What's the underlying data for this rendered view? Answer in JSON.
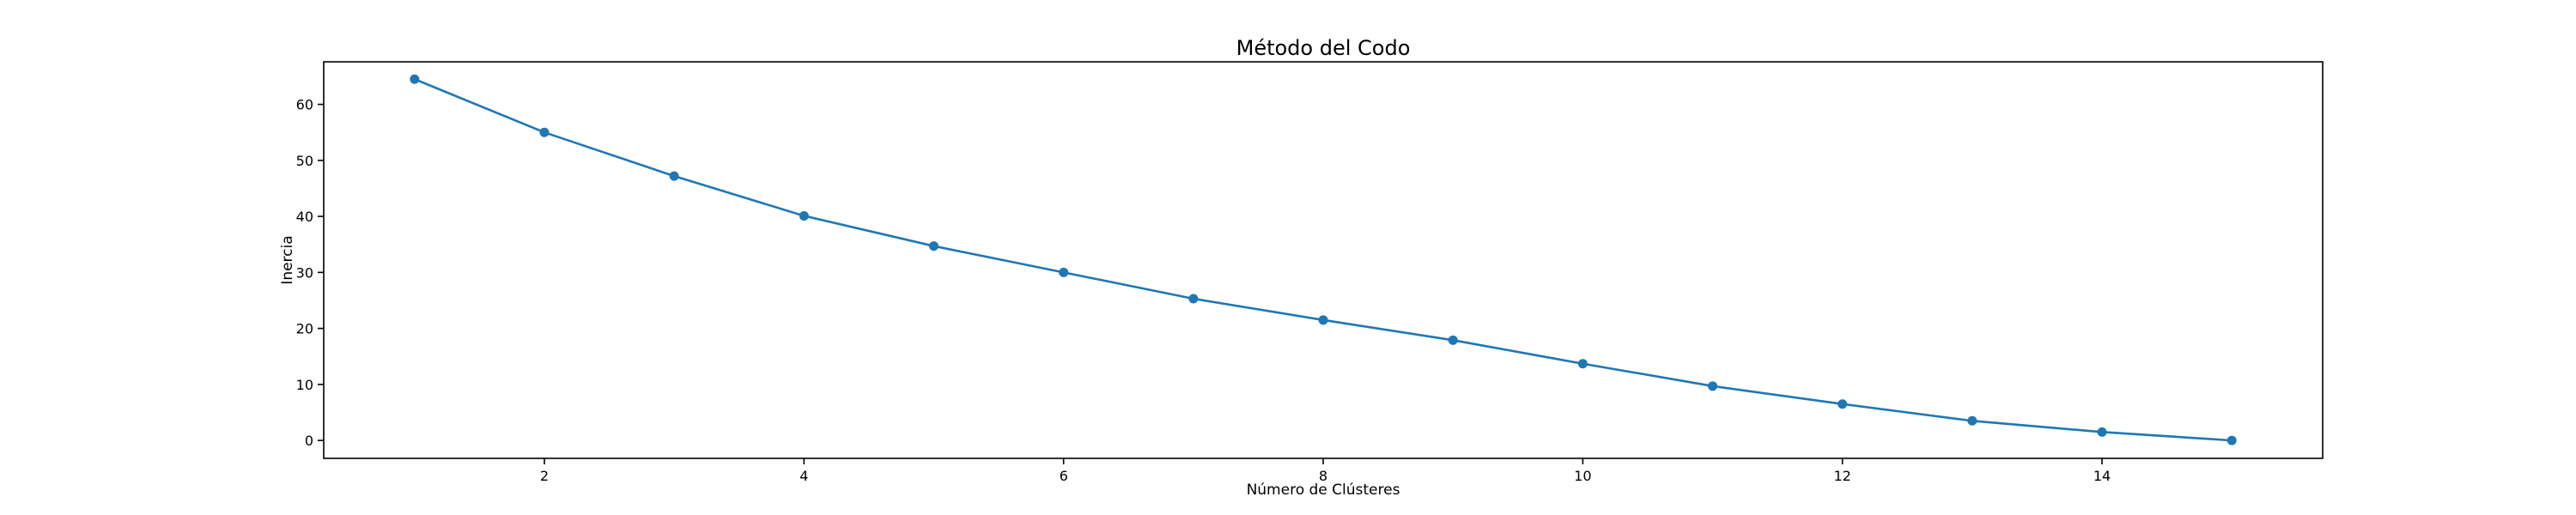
{
  "chart_data": {
    "type": "line",
    "title": "Método del Codo",
    "xlabel": "Número de Clústeres",
    "ylabel": "Inercia",
    "xlim": [
      0.3,
      15.7
    ],
    "ylim": [
      -3.2,
      67.6
    ],
    "xticks": [
      2,
      4,
      6,
      8,
      10,
      12,
      14
    ],
    "yticks": [
      0,
      10,
      20,
      30,
      40,
      50,
      60
    ],
    "grid": false,
    "series": [
      {
        "color": "#1f77b4",
        "marker": "circle",
        "x": [
          1,
          2,
          3,
          4,
          5,
          6,
          7,
          8,
          9,
          10,
          11,
          12,
          13,
          14,
          15
        ],
        "y": [
          64.5,
          55.0,
          47.2,
          40.1,
          34.7,
          30.0,
          25.3,
          21.5,
          17.9,
          13.7,
          9.7,
          6.5,
          3.5,
          1.5,
          0.0
        ]
      }
    ]
  }
}
